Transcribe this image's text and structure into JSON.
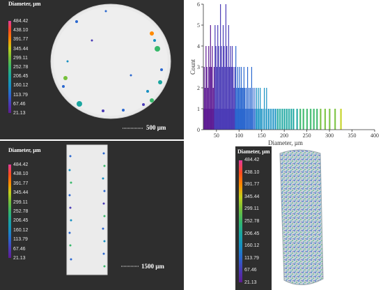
{
  "legend": {
    "title": "Diameter, µm",
    "labels": [
      "484.42",
      "438.10",
      "391.77",
      "345.44",
      "299.11",
      "252.78",
      "206.45",
      "160.12",
      "113.79",
      "67.46",
      "21.13"
    ],
    "gradient": [
      "#e23a9d",
      "#ff4a20",
      "#ff8a00",
      "#c3d11d",
      "#76c03b",
      "#37b86a",
      "#1aa6a0",
      "#1690c2",
      "#2a67cf",
      "#4a3bb6",
      "#5e1b94"
    ]
  },
  "top_left": {
    "scale_label": "500 µm"
  },
  "bottom_left": {
    "scale_label": "1500 µm"
  },
  "chart_data": {
    "type": "bar",
    "xlabel": "Diameter, µm",
    "ylabel": "Count",
    "xlim": [
      21,
      400
    ],
    "ylim": [
      0,
      6
    ],
    "xticks": [
      50,
      100,
      150,
      200,
      250,
      300,
      350,
      400
    ],
    "yticks": [
      0,
      1,
      2,
      3,
      4,
      5,
      6
    ],
    "bins": [
      {
        "x": 22,
        "count": 3
      },
      {
        "x": 24,
        "count": 2
      },
      {
        "x": 26,
        "count": 4
      },
      {
        "x": 28,
        "count": 3
      },
      {
        "x": 30,
        "count": 2
      },
      {
        "x": 32,
        "count": 4
      },
      {
        "x": 34,
        "count": 3
      },
      {
        "x": 36,
        "count": 5
      },
      {
        "x": 38,
        "count": 3
      },
      {
        "x": 40,
        "count": 4
      },
      {
        "x": 42,
        "count": 2
      },
      {
        "x": 44,
        "count": 3
      },
      {
        "x": 46,
        "count": 5
      },
      {
        "x": 48,
        "count": 4
      },
      {
        "x": 50,
        "count": 3
      },
      {
        "x": 52,
        "count": 5
      },
      {
        "x": 54,
        "count": 4
      },
      {
        "x": 56,
        "count": 3
      },
      {
        "x": 58,
        "count": 6
      },
      {
        "x": 60,
        "count": 4
      },
      {
        "x": 62,
        "count": 3
      },
      {
        "x": 64,
        "count": 5
      },
      {
        "x": 66,
        "count": 4
      },
      {
        "x": 68,
        "count": 3
      },
      {
        "x": 70,
        "count": 6
      },
      {
        "x": 72,
        "count": 4
      },
      {
        "x": 74,
        "count": 3
      },
      {
        "x": 76,
        "count": 5
      },
      {
        "x": 78,
        "count": 3
      },
      {
        "x": 80,
        "count": 4
      },
      {
        "x": 82,
        "count": 3
      },
      {
        "x": 84,
        "count": 4
      },
      {
        "x": 86,
        "count": 3
      },
      {
        "x": 88,
        "count": 2
      },
      {
        "x": 90,
        "count": 3
      },
      {
        "x": 92,
        "count": 4
      },
      {
        "x": 94,
        "count": 2
      },
      {
        "x": 96,
        "count": 3
      },
      {
        "x": 98,
        "count": 2
      },
      {
        "x": 100,
        "count": 3
      },
      {
        "x": 102,
        "count": 2
      },
      {
        "x": 104,
        "count": 3
      },
      {
        "x": 106,
        "count": 2
      },
      {
        "x": 108,
        "count": 2
      },
      {
        "x": 110,
        "count": 3
      },
      {
        "x": 112,
        "count": 2
      },
      {
        "x": 115,
        "count": 2
      },
      {
        "x": 118,
        "count": 3
      },
      {
        "x": 121,
        "count": 2
      },
      {
        "x": 124,
        "count": 2
      },
      {
        "x": 127,
        "count": 3
      },
      {
        "x": 130,
        "count": 2
      },
      {
        "x": 134,
        "count": 2
      },
      {
        "x": 138,
        "count": 2
      },
      {
        "x": 142,
        "count": 2
      },
      {
        "x": 146,
        "count": 2
      },
      {
        "x": 150,
        "count": 1
      },
      {
        "x": 155,
        "count": 2
      },
      {
        "x": 160,
        "count": 2
      },
      {
        "x": 165,
        "count": 1
      },
      {
        "x": 170,
        "count": 1
      },
      {
        "x": 175,
        "count": 1
      },
      {
        "x": 180,
        "count": 1
      },
      {
        "x": 185,
        "count": 1
      },
      {
        "x": 190,
        "count": 1
      },
      {
        "x": 195,
        "count": 1
      },
      {
        "x": 200,
        "count": 1
      },
      {
        "x": 205,
        "count": 1
      },
      {
        "x": 210,
        "count": 1
      },
      {
        "x": 215,
        "count": 1
      },
      {
        "x": 220,
        "count": 1
      },
      {
        "x": 228,
        "count": 1
      },
      {
        "x": 235,
        "count": 1
      },
      {
        "x": 242,
        "count": 1
      },
      {
        "x": 250,
        "count": 1
      },
      {
        "x": 258,
        "count": 1
      },
      {
        "x": 265,
        "count": 1
      },
      {
        "x": 272,
        "count": 1
      },
      {
        "x": 280,
        "count": 1
      },
      {
        "x": 290,
        "count": 1
      },
      {
        "x": 300,
        "count": 1
      },
      {
        "x": 312,
        "count": 1
      },
      {
        "x": 325,
        "count": 1
      }
    ]
  }
}
